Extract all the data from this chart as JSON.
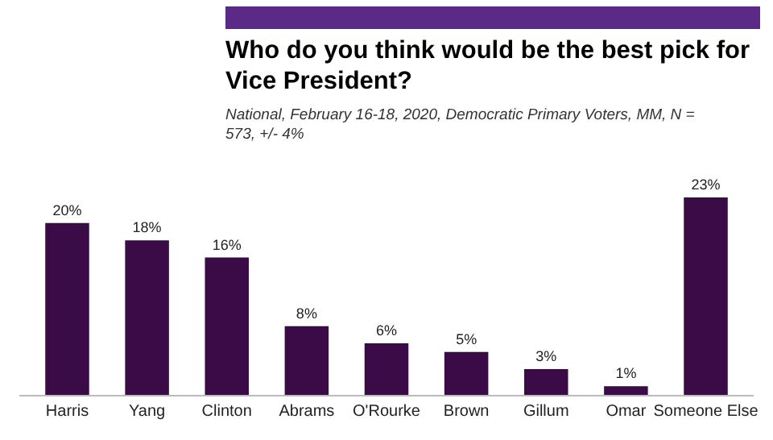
{
  "chart_data": {
    "type": "bar",
    "title": "Who do you think would be the best pick for Vice President?",
    "subtitle": "National, February 16-18, 2020, Democratic Primary Voters, MM, N = 573, +/- 4%",
    "categories": [
      "Harris",
      "Yang",
      "Clinton",
      "Abrams",
      "O'Rourke",
      "Brown",
      "Gillum",
      "Omar",
      "Someone Else"
    ],
    "values": [
      20,
      18,
      16,
      8,
      6,
      5,
      3,
      1,
      23
    ],
    "value_labels": [
      "20%",
      "18%",
      "16%",
      "8%",
      "6%",
      "5%",
      "3%",
      "1%",
      "23%"
    ],
    "color": "#3b0b47",
    "grid": false,
    "legend": false
  }
}
